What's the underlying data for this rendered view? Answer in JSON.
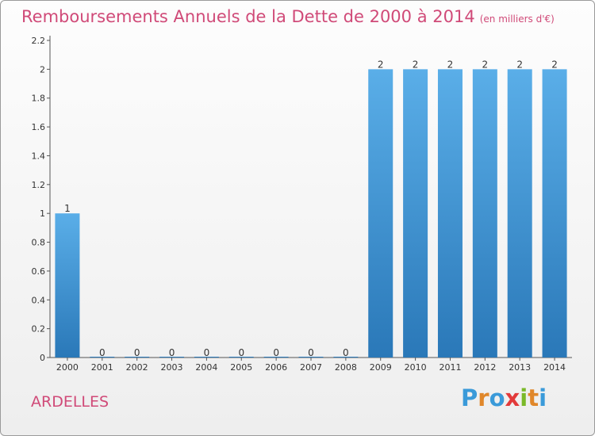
{
  "title": "Remboursements Annuels de la Dette de 2000 à 2014",
  "subtitle": "(en milliers d'€)",
  "commune": "ARDELLES",
  "logo": {
    "letters": [
      "P",
      "r",
      "o",
      "x",
      "i",
      "t",
      "i"
    ],
    "colors": [
      "#3a9ad9",
      "#e0872a",
      "#3a9ad9",
      "#e23a3a",
      "#7ab929",
      "#e0872a",
      "#3a9ad9"
    ]
  },
  "colors": {
    "bar_top": "#5aaee8",
    "bar_bottom": "#2a78b8",
    "title": "#d04a78"
  },
  "chart_data": {
    "type": "bar",
    "categories": [
      "2000",
      "2001",
      "2002",
      "2003",
      "2004",
      "2005",
      "2006",
      "2007",
      "2008",
      "2009",
      "2010",
      "2011",
      "2012",
      "2013",
      "2014"
    ],
    "values": [
      1,
      0,
      0,
      0,
      0,
      0,
      0,
      0,
      0,
      2,
      2,
      2,
      2,
      2,
      2
    ],
    "data_labels": [
      "1",
      "0",
      "0",
      "0",
      "0",
      "0",
      "0",
      "0",
      "0",
      "2",
      "2",
      "2",
      "2",
      "2",
      "2"
    ],
    "y_ticks": [
      "0",
      "0.2",
      "0.4",
      "0.6",
      "0.8",
      "1",
      "1.2",
      "1.4",
      "1.6",
      "1.8",
      "2",
      "2.2"
    ],
    "ylim": [
      0,
      2.2
    ],
    "xlabel": "",
    "ylabel": ""
  }
}
